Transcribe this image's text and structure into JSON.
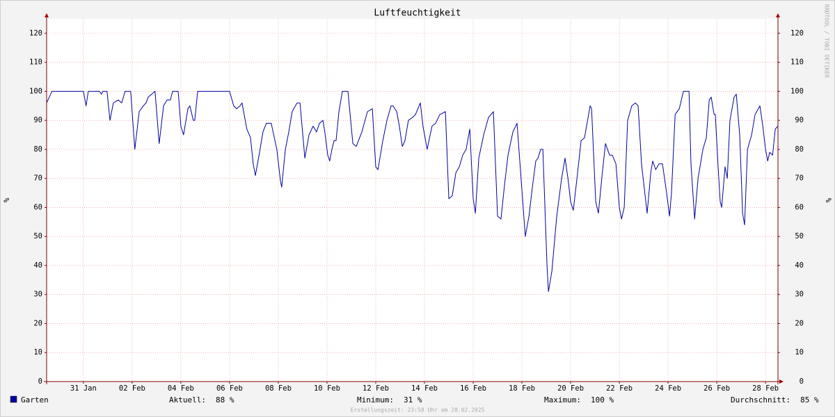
{
  "chart_data": {
    "type": "line",
    "title": "Luftfeuchtigkeit",
    "y_label": "%",
    "y2_label": "%",
    "watermark": "RRDTOOL / TOBI OETIKER",
    "footer": "Erstellungszeit: 23:58 Uhr am 28.02.2025",
    "xlim": [
      29.49,
      59.51
    ],
    "xticks": [
      {
        "value": 31,
        "label": "31 Jan"
      },
      {
        "value": 33,
        "label": "02 Feb"
      },
      {
        "value": 35,
        "label": "04 Feb"
      },
      {
        "value": 37,
        "label": "06 Feb"
      },
      {
        "value": 39,
        "label": "08 Feb"
      },
      {
        "value": 41,
        "label": "10 Feb"
      },
      {
        "value": 43,
        "label": "12 Feb"
      },
      {
        "value": 45,
        "label": "14 Feb"
      },
      {
        "value": 47,
        "label": "16 Feb"
      },
      {
        "value": 49,
        "label": "18 Feb"
      },
      {
        "value": 51,
        "label": "20 Feb"
      },
      {
        "value": 53,
        "label": "22 Feb"
      },
      {
        "value": 55,
        "label": "24 Feb"
      },
      {
        "value": 57,
        "label": "26 Feb"
      },
      {
        "value": 59,
        "label": "28 Feb"
      }
    ],
    "ylim": [
      0,
      125
    ],
    "yticks": [
      0,
      10,
      20,
      30,
      40,
      50,
      60,
      70,
      80,
      90,
      100,
      110,
      120
    ],
    "grid": true,
    "x": [
      29.49,
      29.71,
      31.0,
      31.11,
      31.2,
      31.66,
      31.74,
      31.8,
      31.97,
      32.09,
      32.23,
      32.43,
      32.57,
      32.71,
      32.94,
      33.11,
      33.29,
      33.46,
      33.57,
      33.66,
      33.8,
      33.94,
      34.11,
      34.29,
      34.43,
      34.57,
      34.66,
      34.89,
      35.0,
      35.11,
      35.29,
      35.37,
      35.51,
      35.57,
      35.69,
      37.0,
      37.17,
      37.29,
      37.43,
      37.51,
      37.71,
      37.86,
      37.97,
      38.06,
      38.23,
      38.37,
      38.51,
      38.71,
      38.94,
      39.09,
      39.14,
      39.29,
      39.43,
      39.57,
      39.77,
      39.89,
      40.09,
      40.26,
      40.43,
      40.57,
      40.69,
      40.83,
      40.91,
      41.03,
      41.11,
      41.2,
      41.29,
      41.37,
      41.49,
      41.63,
      41.86,
      42.06,
      42.2,
      42.43,
      42.66,
      42.86,
      43.0,
      43.09,
      43.29,
      43.46,
      43.63,
      43.71,
      43.86,
      43.97,
      44.09,
      44.2,
      44.34,
      44.51,
      44.63,
      44.83,
      44.94,
      45.11,
      45.31,
      45.46,
      45.63,
      45.86,
      46.0,
      46.14,
      46.29,
      46.43,
      46.57,
      46.71,
      46.86,
      47.0,
      47.09,
      47.23,
      47.43,
      47.63,
      47.83,
      48.0,
      48.14,
      48.29,
      48.43,
      48.63,
      48.8,
      49.0,
      49.14,
      49.29,
      49.43,
      49.57,
      49.66,
      49.77,
      49.86,
      50.03,
      50.09,
      50.23,
      50.43,
      50.63,
      50.77,
      50.89,
      51.0,
      51.11,
      51.26,
      51.43,
      51.57,
      51.8,
      51.86,
      52.03,
      52.14,
      52.29,
      52.43,
      52.6,
      52.71,
      52.86,
      53.0,
      53.09,
      53.2,
      53.34,
      53.51,
      53.66,
      53.77,
      53.91,
      54.14,
      54.29,
      54.37,
      54.49,
      54.63,
      54.77,
      54.94,
      55.06,
      55.14,
      55.29,
      55.46,
      55.63,
      55.77,
      55.86,
      55.94,
      56.09,
      56.23,
      56.43,
      56.57,
      56.69,
      56.77,
      56.89,
      56.94,
      57.06,
      57.14,
      57.2,
      57.34,
      57.43,
      57.54,
      57.71,
      57.8,
      57.94,
      58.06,
      58.14,
      58.26,
      58.43,
      58.57,
      58.77,
      58.89,
      59.0,
      59.09,
      59.17,
      59.29,
      59.4,
      59.51
    ],
    "series": [
      {
        "name": "Garten",
        "color": "#0000a0",
        "values": [
          96,
          100,
          100,
          95,
          100,
          100,
          99,
          100,
          100,
          90,
          96,
          97,
          96,
          100,
          100,
          80,
          93,
          95,
          96,
          98,
          99,
          100,
          82,
          95,
          97,
          97,
          100,
          100,
          88,
          85,
          94,
          95,
          90,
          90,
          100,
          100,
          95,
          94,
          95,
          96,
          87,
          84,
          75,
          71,
          79,
          86,
          89,
          89,
          80,
          69,
          67,
          80,
          86,
          93,
          96,
          96,
          77,
          85,
          88,
          86,
          89,
          90,
          86,
          78,
          76,
          80,
          83,
          83,
          93,
          100,
          100,
          82,
          81,
          86,
          93,
          94,
          74,
          73,
          83,
          90,
          95,
          95,
          93,
          88,
          81,
          83,
          90,
          91,
          92,
          96,
          88,
          80,
          88,
          89,
          92,
          93,
          63,
          64,
          72,
          74,
          78,
          80,
          87,
          63,
          58,
          77,
          85,
          91,
          93,
          57,
          56,
          68,
          78,
          86,
          89,
          66,
          50,
          57,
          67,
          76,
          77,
          80,
          80,
          40,
          31,
          38,
          57,
          70,
          77,
          70,
          62,
          59,
          70,
          83,
          84,
          95,
          94,
          62,
          58,
          71,
          82,
          78,
          78,
          75,
          60,
          56,
          60,
          90,
          95,
          96,
          95,
          75,
          58,
          72,
          76,
          73,
          75,
          75,
          65,
          57,
          65,
          92,
          94,
          100,
          100,
          100,
          75,
          56,
          70,
          80,
          84,
          97,
          98,
          92,
          92,
          73,
          62,
          60,
          74,
          70,
          90,
          98,
          99,
          85,
          58,
          54,
          80,
          85,
          92,
          95,
          88,
          80,
          76,
          79,
          78,
          87,
          88
        ]
      }
    ],
    "stats": [
      {
        "label": "Aktuell:",
        "value": 88,
        "value_label": "88 %"
      },
      {
        "label": "Minimum:",
        "value": 31,
        "value_label": "31 %"
      },
      {
        "label": "Maximum:",
        "value": 100,
        "value_label": "100 %"
      },
      {
        "label": "Durchschnitt:",
        "value": 85,
        "value_label": "85 %"
      }
    ]
  }
}
